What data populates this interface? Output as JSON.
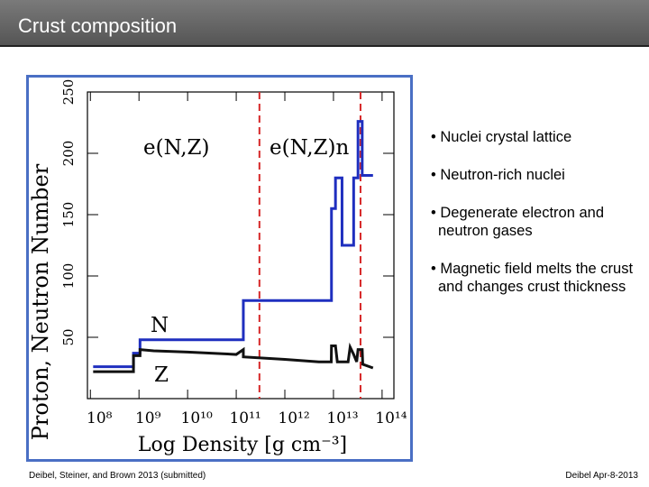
{
  "slide": {
    "title": "Crust composition",
    "bullets": [
      "• Nuclei crystal lattice",
      "• Neutron-rich nuclei",
      "• Degenerate electron and neutron gases",
      "• Magnetic field melts the crust and changes crust thickness"
    ],
    "footer_left": "Deibel, Steiner, and Brown 2013 (submitted)",
    "footer_right": "Deibel Apr-8-2013"
  },
  "chart_data": {
    "type": "line",
    "xlabel": "Log Density [g cm⁻³]",
    "ylabel": "Proton, Neutron Number",
    "xscale": "log",
    "xlim": [
      87000000,
      175000000000000
    ],
    "ylim": [
      0,
      250
    ],
    "xticks": [
      {
        "value": 100000000,
        "label": "10⁸"
      },
      {
        "value": 1000000000,
        "label": "10⁹"
      },
      {
        "value": 10000000000,
        "label": "10¹⁰"
      },
      {
        "value": 100000000000,
        "label": "10¹¹"
      },
      {
        "value": 1000000000000,
        "label": "10¹²"
      },
      {
        "value": 10000000000000,
        "label": "10¹³"
      },
      {
        "value": 100000000000000,
        "label": "10¹⁴"
      }
    ],
    "yticks": [
      50,
      100,
      150,
      200,
      250
    ],
    "vlines": {
      "color": "#d62728",
      "x": [
        300000000000,
        36000000000000
      ]
    },
    "annotations": [
      "e(N,Z)",
      "e(N,Z)n"
    ],
    "series": [
      {
        "name": "N",
        "color": "#1f2fbf",
        "x": [
          114000000,
          770000000,
          770000000,
          1050000000,
          1050000000,
          140000000000,
          140000000000,
          9100000000000,
          9100000000000,
          11000000000000,
          11000000000000,
          15000000000000,
          15000000000000,
          26000000000000,
          26000000000000,
          32000000000000,
          32000000000000,
          39000000000000,
          39000000000000,
          65000000000000
        ],
        "values": [
          26,
          26,
          37,
          37,
          48,
          48,
          80,
          80,
          155,
          155,
          180,
          180,
          125,
          125,
          180,
          180,
          226,
          226,
          182,
          182
        ]
      },
      {
        "name": "Z",
        "color": "#111111",
        "x": [
          114000000,
          770000000,
          770000000,
          1050000000,
          1050000000,
          2000000000,
          10000000000,
          100000000000,
          140000000000,
          140000000000,
          1000000000000,
          5000000000000,
          9000000000000,
          9100000000000,
          11000000000000,
          12000000000000,
          20000000000000,
          22000000000000,
          26000000000000,
          30000000000000,
          32000000000000,
          39000000000000,
          40000000000000,
          65000000000000
        ],
        "values": [
          22,
          22,
          35,
          35,
          40,
          39,
          38,
          36,
          40,
          34,
          32,
          30,
          30,
          43,
          43,
          30,
          30,
          42,
          36,
          30,
          40,
          40,
          28,
          25
        ]
      }
    ]
  }
}
